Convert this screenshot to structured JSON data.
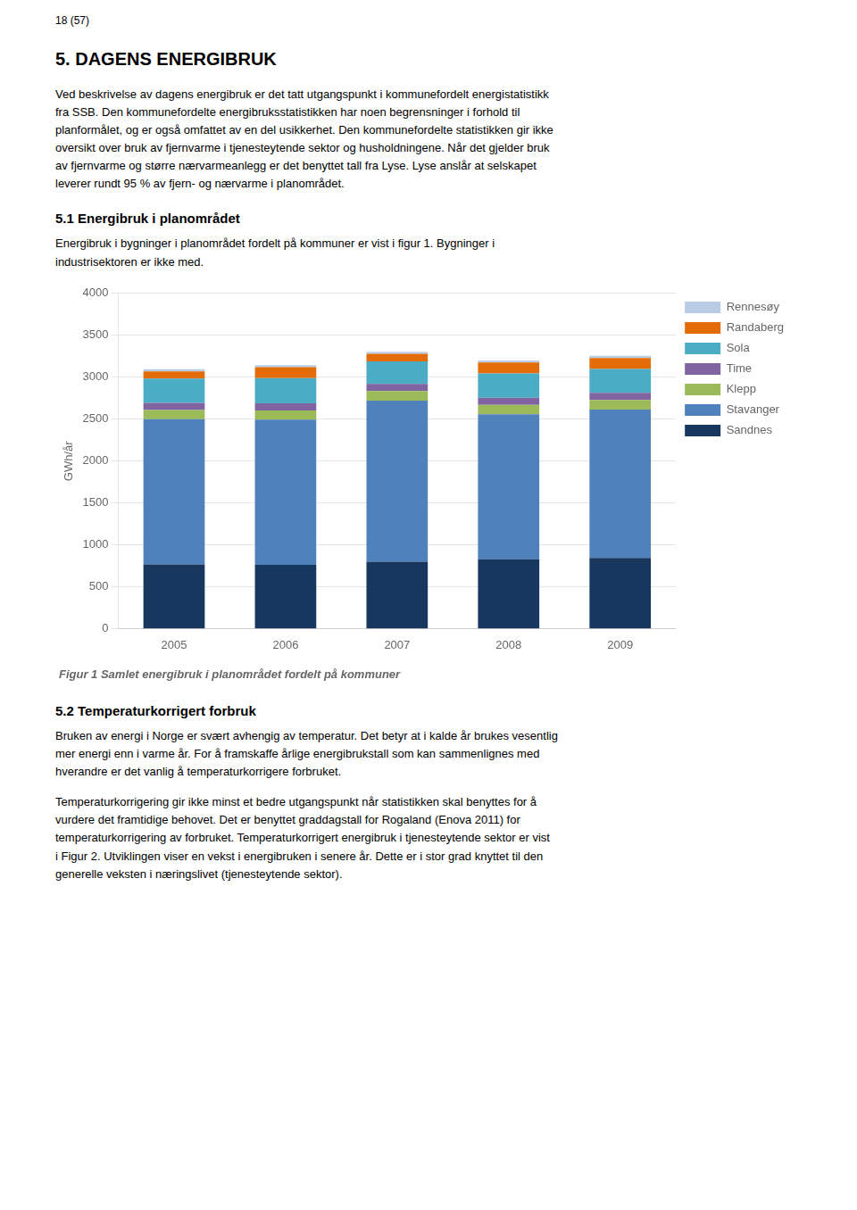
{
  "chart_data": {
    "type": "bar",
    "stacked": true,
    "title": "Figur 1 Samlet energibruk i planområdet fordelt på kommuner",
    "annotations": [
      "18 (57)",
      "5.  DAGENS ENERGIBRUK",
      "Ved beskrivelse av dagens energibruk er det tatt utgangspunkt i kommunefordelt energistatistikk\nfra SSB. Den kommunefordelte energibruksstatistikken har noen begrensninger i forhold til\nplanformålet, og er også omfattet av en del usikkerhet.  Den kommunefordelte statistikken gir ikke\noversikt over bruk av fjernvarme i tjenesteytende sektor og husholdningene. Når det gjelder bruk\nav fjernvarme og større nærvarmeanlegg er det benyttet tall fra Lyse. Lyse anslår at selskapet\nleverer rundt 95 % av fjern- og nærvarme i planområdet.",
      "5.1  Energibruk i planområdet",
      "Energibruk i bygninger i planområdet fordelt på kommuner er vist i figur 1. Bygninger i\nindustrisektoren er ikke med.",
      "5.2  Temperaturkorrigert forbruk",
      "Bruken av energi i Norge er svært avhengig av temperatur. Det betyr at i kalde år brukes vesentlig\nmer energi enn i varme år. For å framskaffe årlige energibrukstall som kan sammenlignes med\nhverandre er det vanlig å temperaturkorrigere forbruket.",
      "Temperaturkorrigering gir ikke minst et bedre utgangspunkt når statistikken skal benyttes for å\nvurdere det framtidige behovet. Det er benyttet graddagstall for Rogaland (Enova 2011) for\ntemperaturkorrigering av forbruket. Temperaturkorrigert energibruk i tjenesteytende sektor er vist\ni Figur 2. Utviklingen viser en vekst i energibruken i senere år. Dette er i stor grad knyttet til den\ngenerelle veksten i næringslivet (tjenesteytende sektor)."
    ],
    "ylabel": "GWh/år",
    "categories": [
      "2005",
      "2006",
      "2007",
      "2008",
      "2009"
    ],
    "series": [
      {
        "name": "Sandnes",
        "color": "#17375E",
        "values": [
          770,
          765,
          800,
          830,
          845
        ]
      },
      {
        "name": "Stavanger",
        "color": "#4F81BD",
        "values": [
          1730,
          1730,
          1920,
          1730,
          1770
        ]
      },
      {
        "name": "Klepp",
        "color": "#9BBB59",
        "values": [
          110,
          110,
          115,
          110,
          115
        ]
      },
      {
        "name": "Time",
        "color": "#8064A2",
        "values": [
          85,
          85,
          85,
          85,
          85
        ]
      },
      {
        "name": "Sola",
        "color": "#4BACC6",
        "values": [
          290,
          300,
          270,
          290,
          285
        ]
      },
      {
        "name": "Randaberg",
        "color": "#E36C09",
        "values": [
          85,
          130,
          90,
          130,
          130
        ]
      },
      {
        "name": "Rennesøy",
        "color": "#B8CCE4",
        "values": [
          25,
          25,
          25,
          25,
          25
        ]
      }
    ],
    "ylim": [
      0,
      4000
    ],
    "yticks": [
      0,
      500,
      1000,
      1500,
      2000,
      2500,
      3000,
      3500,
      4000
    ],
    "grid": true,
    "legend": "right"
  }
}
